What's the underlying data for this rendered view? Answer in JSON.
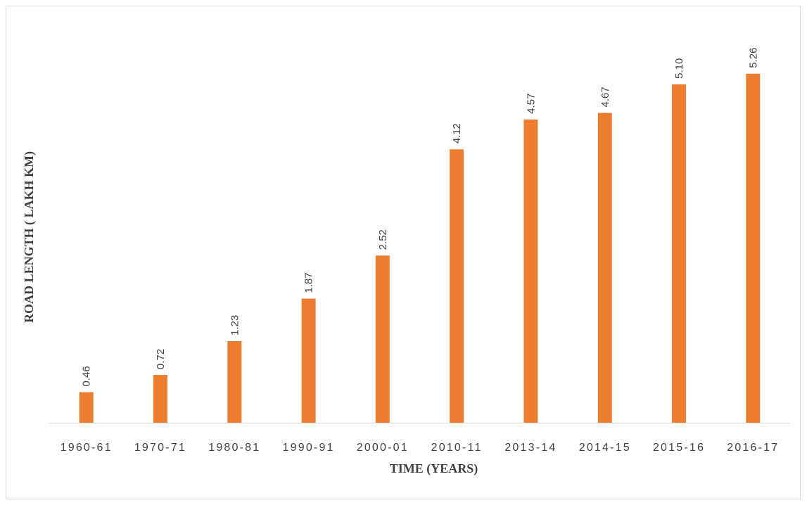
{
  "chart_data": {
    "type": "bar",
    "title": "",
    "xlabel": "TIME (YEARS)",
    "ylabel": "ROAD LENGTH ( LAKH KM)",
    "categories": [
      "1960-61",
      "1970-71",
      "1980-81",
      "1990-91",
      "2000-01",
      "2010-11",
      "2013-14",
      "2014-15",
      "2015-16",
      "2016-17"
    ],
    "values": [
      0.46,
      0.72,
      1.23,
      1.87,
      2.52,
      4.12,
      4.57,
      4.67,
      5.1,
      5.26
    ],
    "value_labels": [
      "0.46",
      "0.72",
      "1.23",
      "1.87",
      "2.52",
      "4.12",
      "4.57",
      "4.67",
      "5.10",
      "5.26"
    ],
    "ylim": [
      0,
      6
    ],
    "grid": false,
    "legend": "none",
    "bar_color": "#ED7D31",
    "axis_color": "#D9D9D9"
  }
}
